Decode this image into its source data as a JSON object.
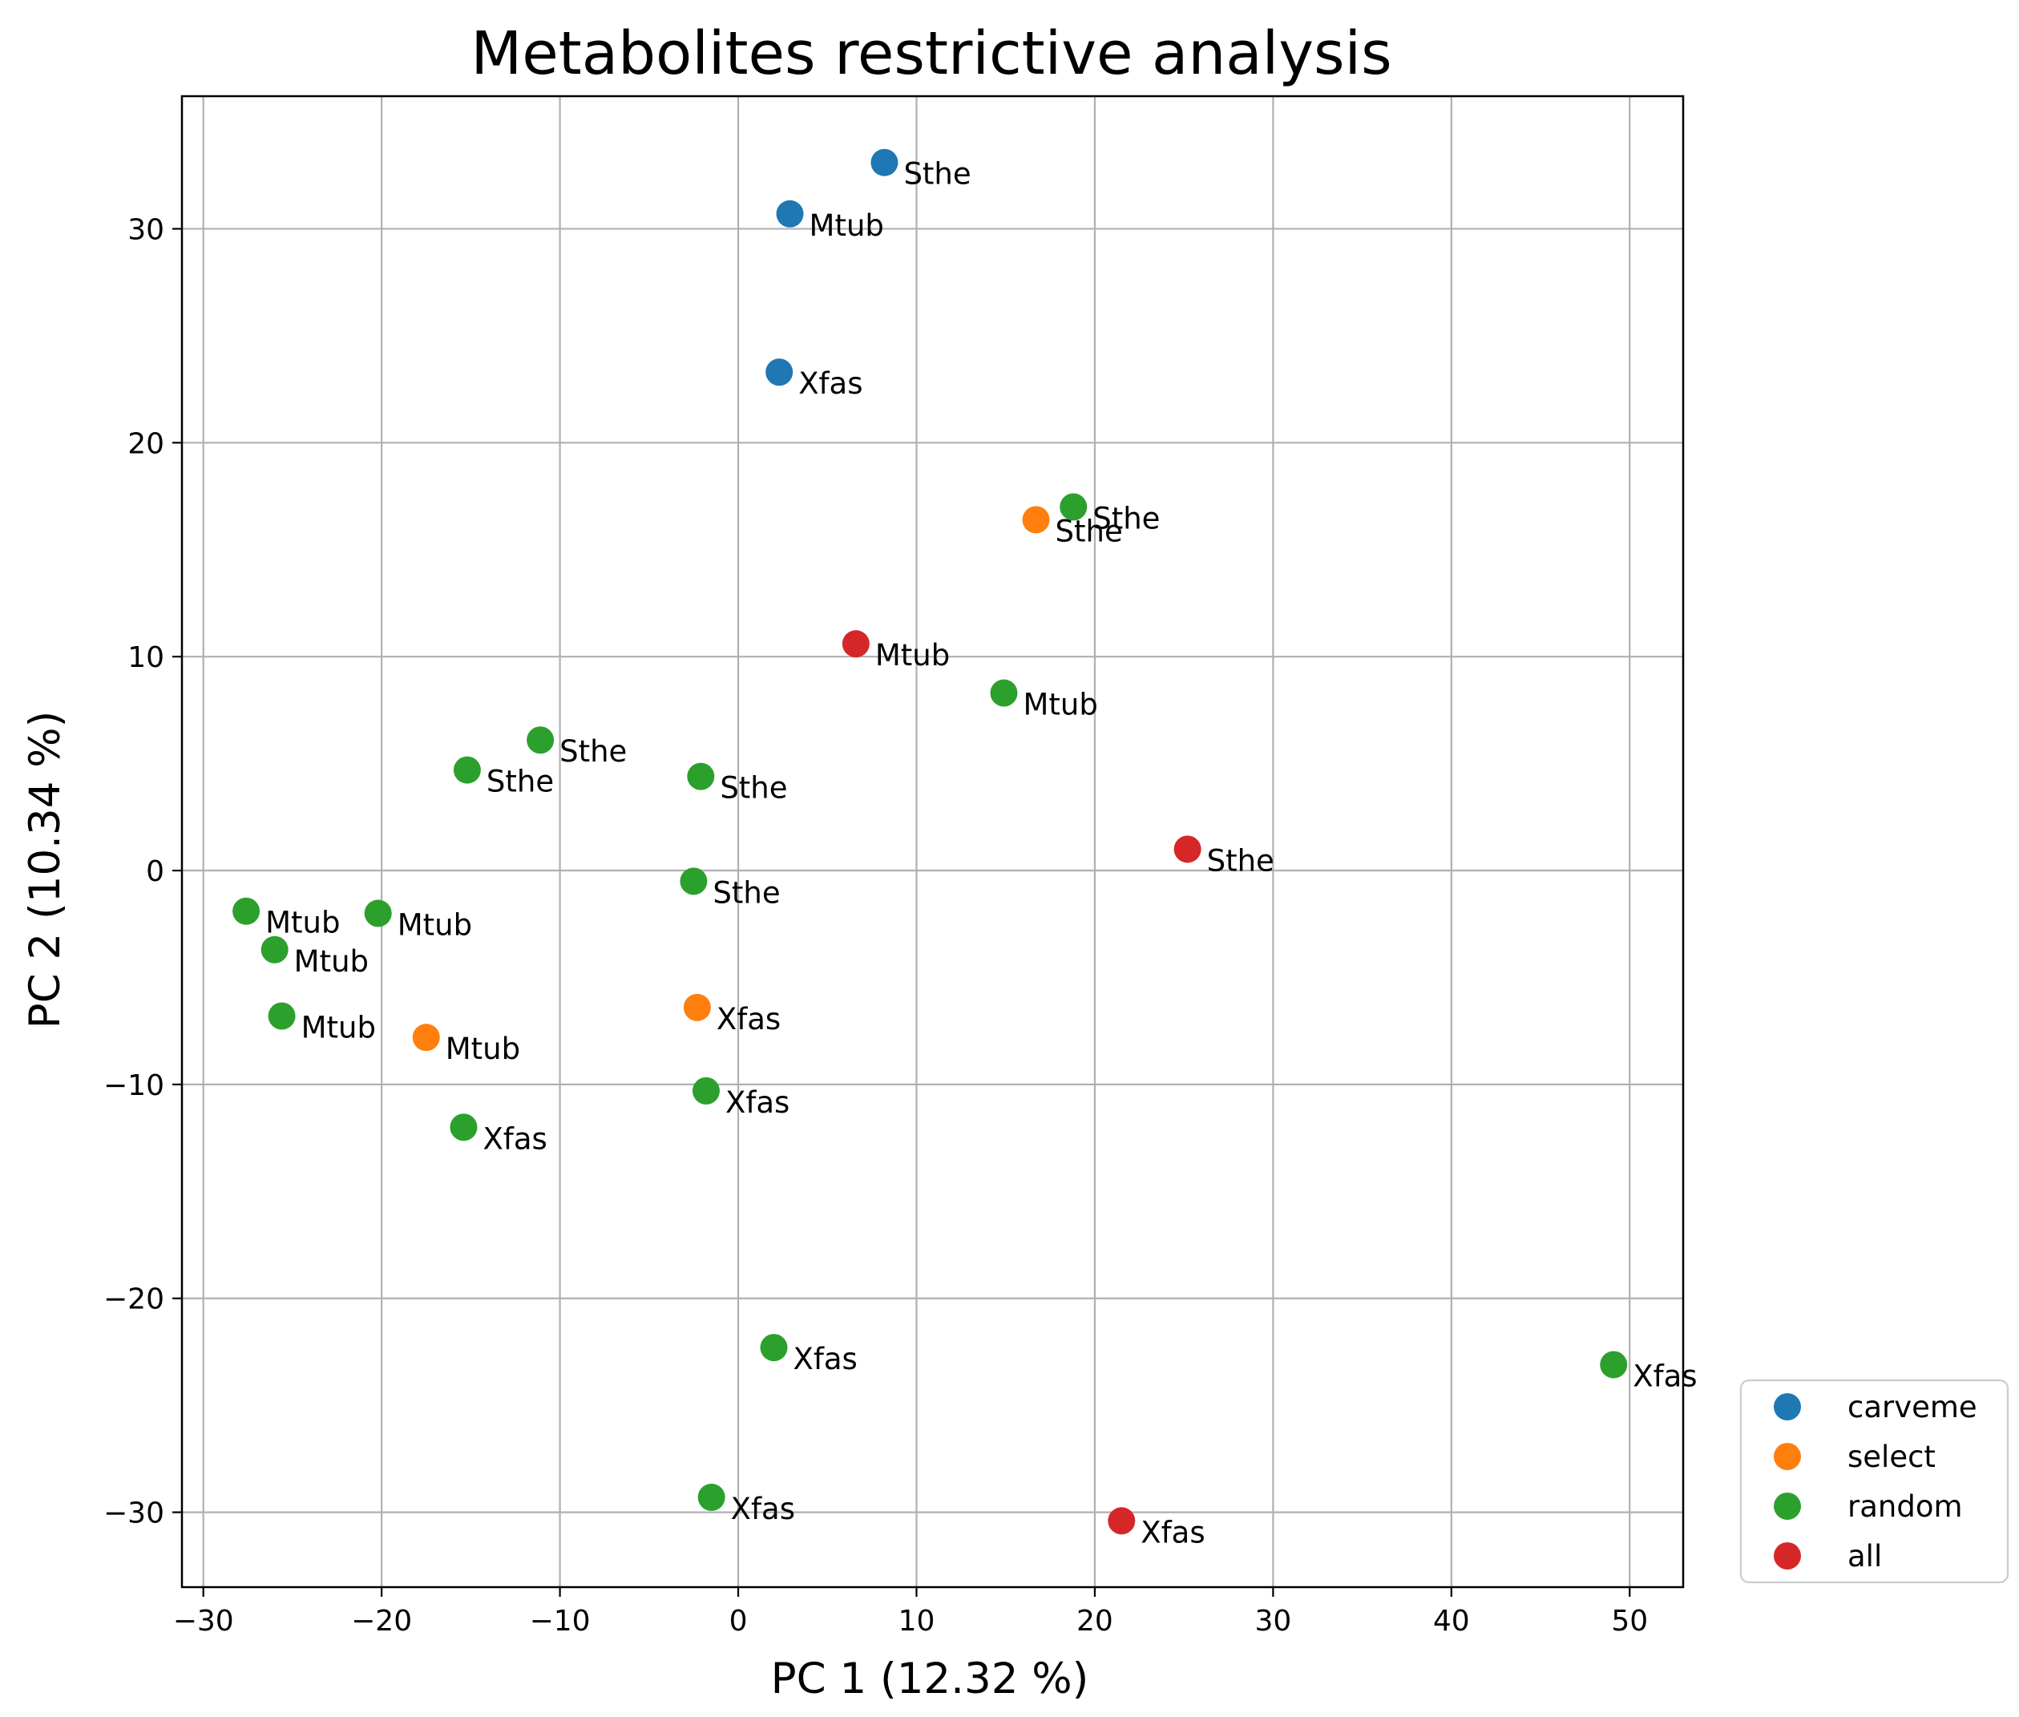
{
  "chart_data": {
    "type": "scatter",
    "title": "Metabolites restrictive analysis",
    "xlabel": "PC 1 (12.32 %)",
    "ylabel": "PC 2 (10.34 %)",
    "xlim": [
      -31.2,
      53
    ],
    "ylim": [
      -33.5,
      36.2
    ],
    "xticks": [
      -30,
      -20,
      -10,
      0,
      10,
      20,
      30,
      40,
      50
    ],
    "yticks": [
      -30,
      -20,
      -10,
      0,
      10,
      20,
      30
    ],
    "grid": true,
    "legend_position": "outside-bottom-right",
    "series": [
      {
        "name": "carveme",
        "color": "#1f77b4",
        "points": [
          {
            "x": 8.2,
            "y": 33.1,
            "label": "Sthe"
          },
          {
            "x": 2.9,
            "y": 30.7,
            "label": "Mtub"
          },
          {
            "x": 2.3,
            "y": 23.3,
            "label": "Xfas"
          }
        ]
      },
      {
        "name": "select",
        "color": "#ff7f0e",
        "points": [
          {
            "x": 16.7,
            "y": 16.4,
            "label": "Sthe"
          },
          {
            "x": -2.3,
            "y": -6.4,
            "label": "Xfas"
          },
          {
            "x": -17.5,
            "y": -7.8,
            "label": "Mtub"
          }
        ]
      },
      {
        "name": "random",
        "color": "#2ca02c",
        "points": [
          {
            "x": 18.8,
            "y": 17.0,
            "label": "Sthe"
          },
          {
            "x": 14.9,
            "y": 8.3,
            "label": "Mtub"
          },
          {
            "x": -11.1,
            "y": 6.1,
            "label": "Sthe"
          },
          {
            "x": -15.2,
            "y": 4.7,
            "label": "Sthe"
          },
          {
            "x": -2.1,
            "y": 4.4,
            "label": "Sthe"
          },
          {
            "x": -2.5,
            "y": -0.5,
            "label": "Sthe"
          },
          {
            "x": -27.6,
            "y": -1.9,
            "label": "Mtub"
          },
          {
            "x": -20.2,
            "y": -2.0,
            "label": "Mtub"
          },
          {
            "x": -26.0,
            "y": -3.7,
            "label": "Mtub"
          },
          {
            "x": -25.6,
            "y": -6.8,
            "label": "Mtub"
          },
          {
            "x": -1.8,
            "y": -10.3,
            "label": "Xfas"
          },
          {
            "x": -15.4,
            "y": -12.0,
            "label": "Xfas"
          },
          {
            "x": 2.0,
            "y": -22.3,
            "label": "Xfas"
          },
          {
            "x": 49.1,
            "y": -23.1,
            "label": "Xfas"
          },
          {
            "x": -1.5,
            "y": -29.3,
            "label": "Xfas"
          }
        ]
      },
      {
        "name": "all",
        "color": "#d62728",
        "points": [
          {
            "x": 6.6,
            "y": 10.6,
            "label": "Mtub"
          },
          {
            "x": 25.2,
            "y": 1.0,
            "label": "Sthe"
          },
          {
            "x": 21.5,
            "y": -30.4,
            "label": "Xfas"
          }
        ]
      }
    ]
  }
}
